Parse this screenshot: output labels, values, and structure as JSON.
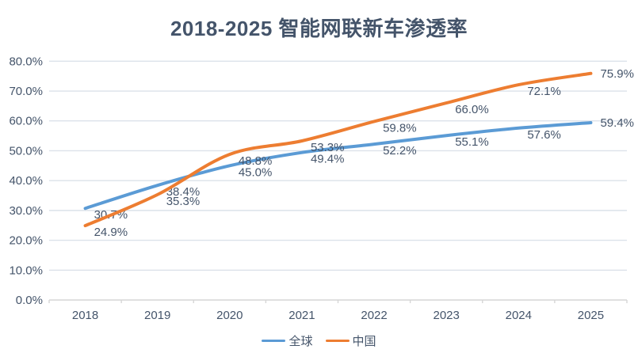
{
  "chart_data": {
    "type": "line",
    "title": "2018-2025 智能网联新车渗透率",
    "categories": [
      "2018",
      "2019",
      "2020",
      "2021",
      "2022",
      "2023",
      "2024",
      "2025"
    ],
    "series": [
      {
        "name": "全球",
        "color": "#5B9BD5",
        "values": [
          30.7,
          38.4,
          45.0,
          49.4,
          52.2,
          55.1,
          57.6,
          59.4
        ]
      },
      {
        "name": "中国",
        "color": "#ED7D31",
        "values": [
          24.9,
          35.3,
          48.8,
          53.3,
          59.8,
          66.0,
          72.1,
          75.9
        ]
      }
    ],
    "ylim": [
      0,
      80
    ],
    "ytick_step": 10,
    "ytick_labels": [
      "0.0%",
      "10.0%",
      "20.0%",
      "30.0%",
      "40.0%",
      "50.0%",
      "60.0%",
      "70.0%",
      "80.0%"
    ],
    "grid": true,
    "legend_position": "bottom",
    "data_label_suffix": "%",
    "smoothed_lines": true
  },
  "colors": {
    "title_text": "#44546A",
    "axis_text": "#44546A",
    "data_label_text": "#44546A",
    "gridline": "#DCE2EA",
    "axis_line": "#D6D6D6",
    "background": "#FFFFFF"
  }
}
